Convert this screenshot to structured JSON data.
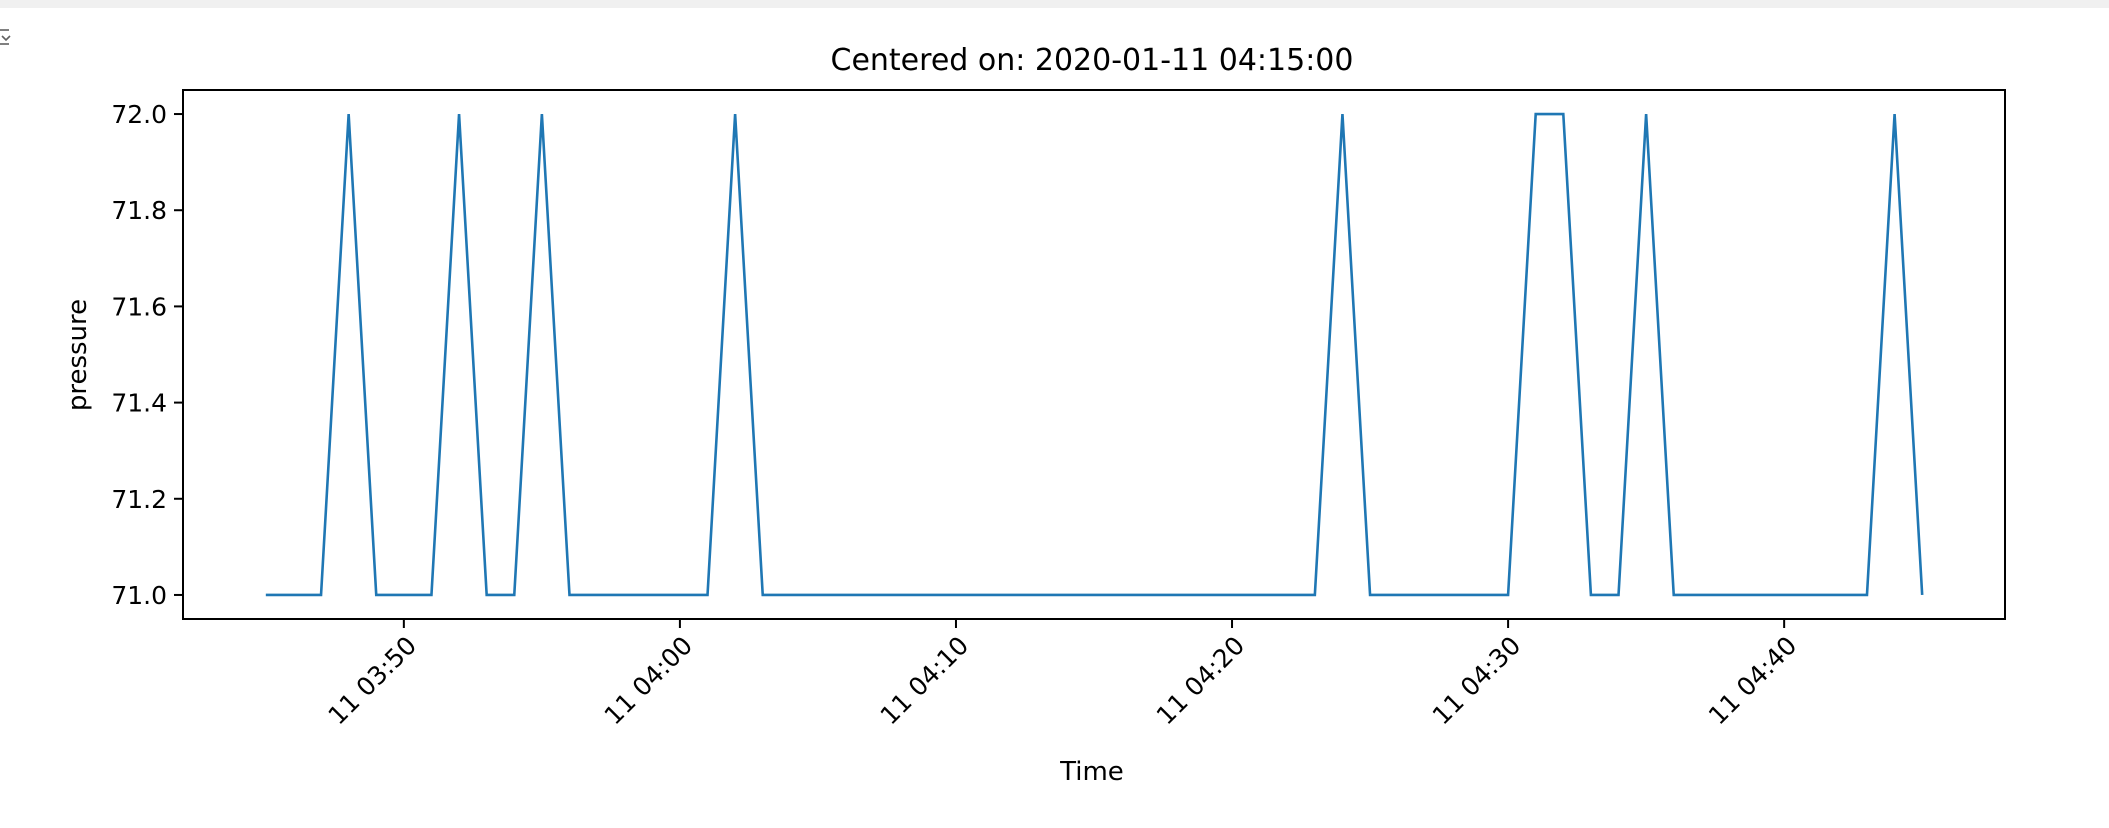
{
  "cell": {
    "output_icon": "collapse-output-icon"
  },
  "chart_data": {
    "type": "line",
    "title": "Centered on: 2020-01-11 04:15:00",
    "xlabel": "Time",
    "ylabel": "pressure",
    "x_start": "2020-01-11 03:45",
    "x_step_minutes": 1,
    "x_end": "2020-01-11 04:45",
    "xlim": [
      "2020-01-11 03:42",
      "2020-01-11 04:48"
    ],
    "ylim": [
      70.95,
      72.05
    ],
    "y_ticks": [
      71.0,
      71.2,
      71.4,
      71.6,
      71.8,
      72.0
    ],
    "y_tick_labels": [
      "71.0",
      "71.2",
      "71.4",
      "71.6",
      "71.8",
      "72.0"
    ],
    "x_ticks": [
      "2020-01-11 03:50",
      "2020-01-11 04:00",
      "2020-01-11 04:10",
      "2020-01-11 04:20",
      "2020-01-11 04:30",
      "2020-01-11 04:40"
    ],
    "x_tick_labels": [
      "11 03:50",
      "11 04:00",
      "11 04:10",
      "11 04:20",
      "11 04:30",
      "11 04:40"
    ],
    "grid": false,
    "series": [
      {
        "color": "#1f77b4",
        "values": [
          71,
          71,
          71,
          72,
          71,
          71,
          71,
          72,
          71,
          71,
          72,
          71,
          71,
          71,
          71,
          71,
          71,
          72,
          71,
          71,
          71,
          71,
          71,
          71,
          71,
          71,
          71,
          71,
          71,
          71,
          71,
          71,
          71,
          71,
          71,
          71,
          71,
          71,
          71,
          72,
          71,
          71,
          71,
          71,
          71,
          71,
          72,
          72,
          71,
          71,
          72,
          71,
          71,
          71,
          71,
          71,
          71,
          71,
          71,
          72,
          71
        ]
      }
    ]
  }
}
